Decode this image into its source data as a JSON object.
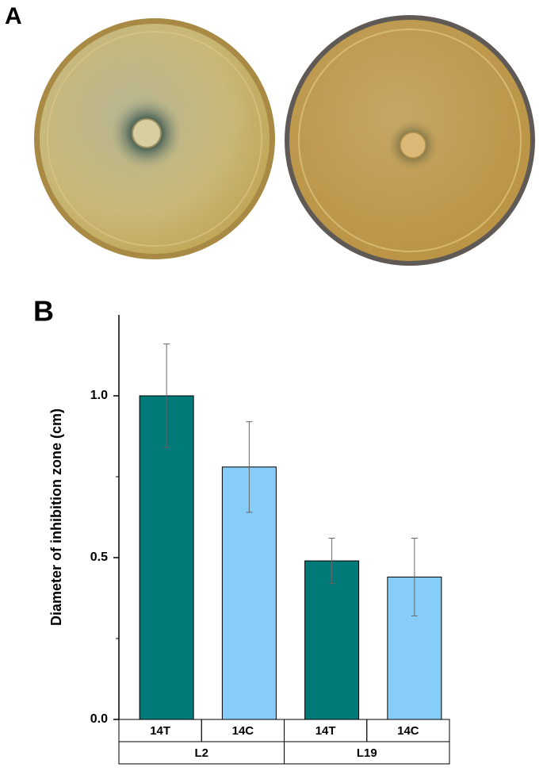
{
  "panel_labels": [
    "A",
    "B"
  ],
  "chart_data": {
    "type": "bar",
    "ylabel": "Diameter of inhibition zone (cm)",
    "categories": [
      "14T",
      "14C",
      "14T",
      "14C"
    ],
    "groups": [
      {
        "name": "L2",
        "size": 2
      },
      {
        "name": "L19",
        "size": 2
      }
    ],
    "values": [
      1.0,
      0.78,
      0.49,
      0.44
    ],
    "errors": [
      0.16,
      0.14,
      0.07,
      0.12
    ],
    "colors": [
      "#007a78",
      "#87cdfa",
      "#007a78",
      "#87cdfa"
    ],
    "ylim": [
      0,
      1.25
    ],
    "yticks": [
      {
        "value": 0,
        "label": "0.0"
      },
      {
        "value": 0.5,
        "label": "0.5"
      },
      {
        "value": 1,
        "label": "1.0"
      }
    ],
    "yminorticks": [
      0.25,
      0.75
    ]
  }
}
